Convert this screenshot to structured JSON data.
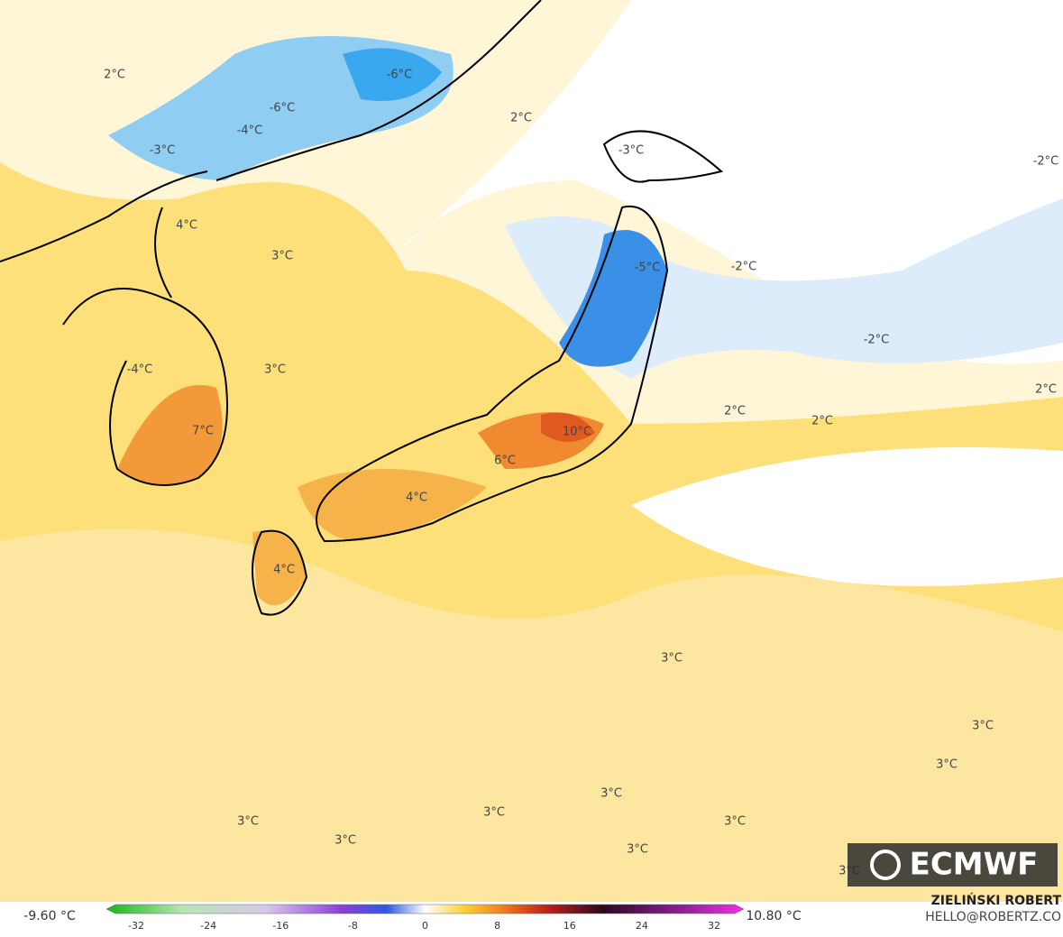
{
  "map": {
    "labels": [
      "2°C",
      "-6°C",
      "-6°C",
      "-4°C",
      "-3°C",
      "2°C",
      "-3°C",
      "-2°C",
      "4°C",
      "3°C",
      "-5°C",
      "-2°C",
      "-2°C",
      "-4°C",
      "3°C",
      "2°C",
      "2°C",
      "2°C",
      "7°C",
      "10°C",
      "6°C",
      "4°C",
      "4°C",
      "3°C",
      "3°C",
      "3°C",
      "3°C",
      "3°C",
      "3°C",
      "3°C",
      "3°C",
      "3°C",
      "3°C"
    ]
  },
  "logo": "ECMWF",
  "colorbar": {
    "min_label": "-9.60 °C",
    "max_label": "10.80 °C",
    "ticks": [
      "-32",
      "-24",
      "-16",
      "-8",
      "0",
      "8",
      "16",
      "24",
      "32"
    ]
  },
  "credit": {
    "author": "ZIELIŃSKI ROBERT",
    "email": "HELLO@ROBERTZ.CO"
  }
}
